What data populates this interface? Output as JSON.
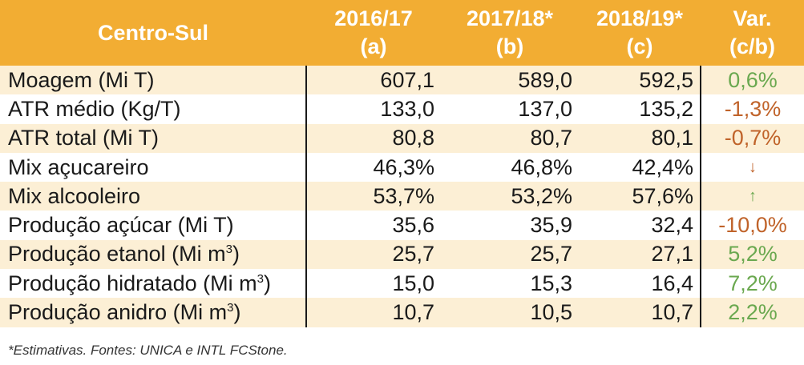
{
  "header": {
    "region": "Centro-Sul",
    "columns": [
      {
        "year": "2016/17",
        "tag": "(a)"
      },
      {
        "year": "2017/18*",
        "tag": "(b)"
      },
      {
        "year": "2018/19*",
        "tag": "(c)"
      },
      {
        "year": "Var.",
        "tag": "(c/b)"
      }
    ]
  },
  "rows": [
    {
      "label": "Moagem (Mi T)",
      "sup": "",
      "label_after": "",
      "a": "607,1",
      "b": "589,0",
      "c": "592,5",
      "var": "0,6%",
      "trend": "pos"
    },
    {
      "label": "ATR médio (Kg/T)",
      "sup": "",
      "label_after": "",
      "a": "133,0",
      "b": "137,0",
      "c": "135,2",
      "var": "-1,3%",
      "trend": "neg"
    },
    {
      "label": "ATR total (Mi T)",
      "sup": "",
      "label_after": "",
      "a": "80,8",
      "b": "80,7",
      "c": "80,1",
      "var": "-0,7%",
      "trend": "neg"
    },
    {
      "label": "Mix açucareiro",
      "sup": "",
      "label_after": "",
      "a": "46,3%",
      "b": "46,8%",
      "c": "42,4%",
      "var": "↓",
      "trend": "neg"
    },
    {
      "label": "Mix alcooleiro",
      "sup": "",
      "label_after": "",
      "a": "53,7%",
      "b": "53,2%",
      "c": "57,6%",
      "var": "↑",
      "trend": "pos"
    },
    {
      "label": "Produção açúcar (Mi T)",
      "sup": "",
      "label_after": "",
      "a": "35,6",
      "b": "35,9",
      "c": "32,4",
      "var": "-10,0%",
      "trend": "neg"
    },
    {
      "label": "Produção etanol (Mi m",
      "sup": "3",
      "label_after": ")",
      "a": "25,7",
      "b": "25,7",
      "c": "27,1",
      "var": "5,2%",
      "trend": "pos"
    },
    {
      "label": "Produção hidratado (Mi m",
      "sup": "3",
      "label_after": ")",
      "a": "15,0",
      "b": "15,3",
      "c": "16,4",
      "var": "7,2%",
      "trend": "pos"
    },
    {
      "label": "Produção anidro (Mi m",
      "sup": "3",
      "label_after": ")",
      "a": "10,7",
      "b": "10,5",
      "c": "10,7",
      "var": "2,2%",
      "trend": "pos"
    }
  ],
  "footnote": "*Estimativas.   Fontes: UNICA e INTL FCStone.",
  "colors": {
    "header_bg": "#f2ad33",
    "band_bg": "#fcefd5",
    "positive": "#6aa84f",
    "negative": "#c0632a"
  },
  "chart_data": {
    "type": "table",
    "title": "",
    "columns": [
      "Centro-Sul",
      "2016/17 (a)",
      "2017/18* (b)",
      "2018/19* (c)",
      "Var. (c/b)"
    ],
    "rows": [
      [
        "Moagem (Mi T)",
        607.1,
        589.0,
        592.5,
        "0,6%"
      ],
      [
        "ATR médio (Kg/T)",
        133.0,
        137.0,
        135.2,
        "-1,3%"
      ],
      [
        "ATR total (Mi T)",
        80.8,
        80.7,
        80.1,
        "-0,7%"
      ],
      [
        "Mix açucareiro",
        "46,3%",
        "46,8%",
        "42,4%",
        "↓"
      ],
      [
        "Mix alcooleiro",
        "53,7%",
        "53,2%",
        "57,6%",
        "↑"
      ],
      [
        "Produção açúcar (Mi T)",
        35.6,
        35.9,
        32.4,
        "-10,0%"
      ],
      [
        "Produção etanol (Mi m3)",
        25.7,
        25.7,
        27.1,
        "5,2%"
      ],
      [
        "Produção hidratado (Mi m3)",
        15.0,
        15.3,
        16.4,
        "7,2%"
      ],
      [
        "Produção anidro (Mi m3)",
        10.7,
        10.5,
        10.7,
        "2,2%"
      ]
    ]
  }
}
